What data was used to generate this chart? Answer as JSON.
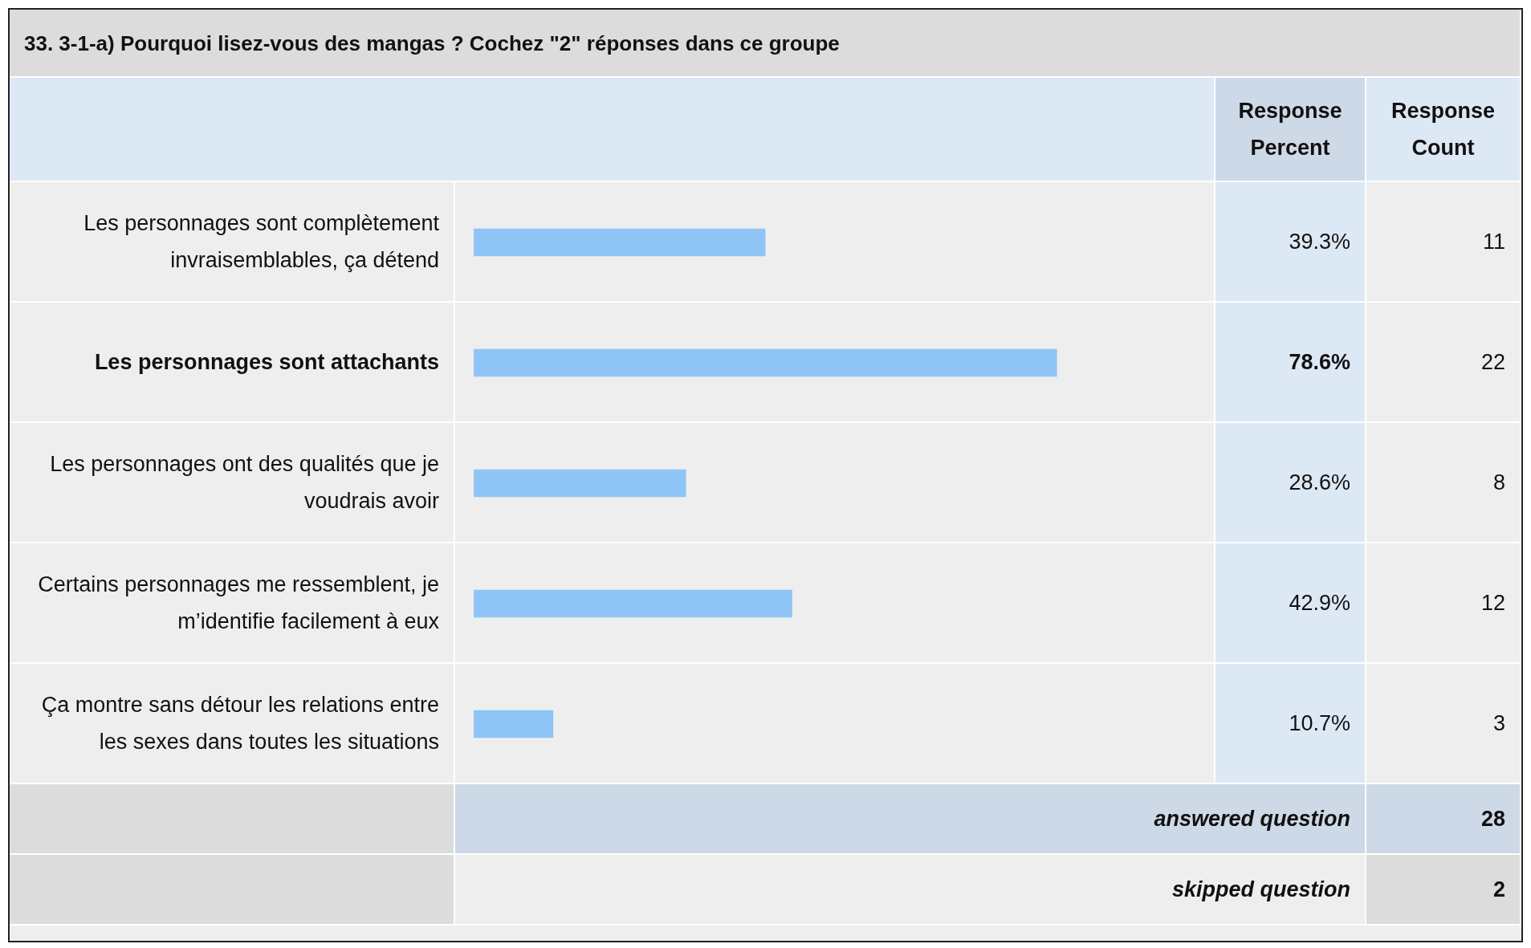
{
  "chart_data": {
    "type": "bar",
    "orientation": "horizontal",
    "title": "33. 3-1-a) Pourquoi lisez-vous des mangas ? Cochez \"2\" réponses dans ce groupe",
    "categories": [
      "Les personnages sont complètement invraisemblables, ça détend",
      "Les personnages sont attachants",
      "Les personnages ont des qualités que je voudrais avoir",
      "Certains personnages me ressemblent, je m’identifie facilement à eux",
      "Ça montre sans détour les relations entre les sexes dans toutes les situations"
    ],
    "values": [
      39.3,
      78.6,
      28.6,
      42.9,
      10.7
    ],
    "value_labels": [
      "39.3%",
      "78.6%",
      "28.6%",
      "42.9%",
      "10.7%"
    ],
    "color": "#8ec5f5",
    "xlim": [
      0,
      100
    ],
    "tick_labels": false,
    "annotations": [
      "Response Percent",
      "Response Count",
      "11",
      "22",
      "8",
      "12",
      "3",
      "answered question",
      "28",
      "skipped question",
      "2"
    ]
  }
}
